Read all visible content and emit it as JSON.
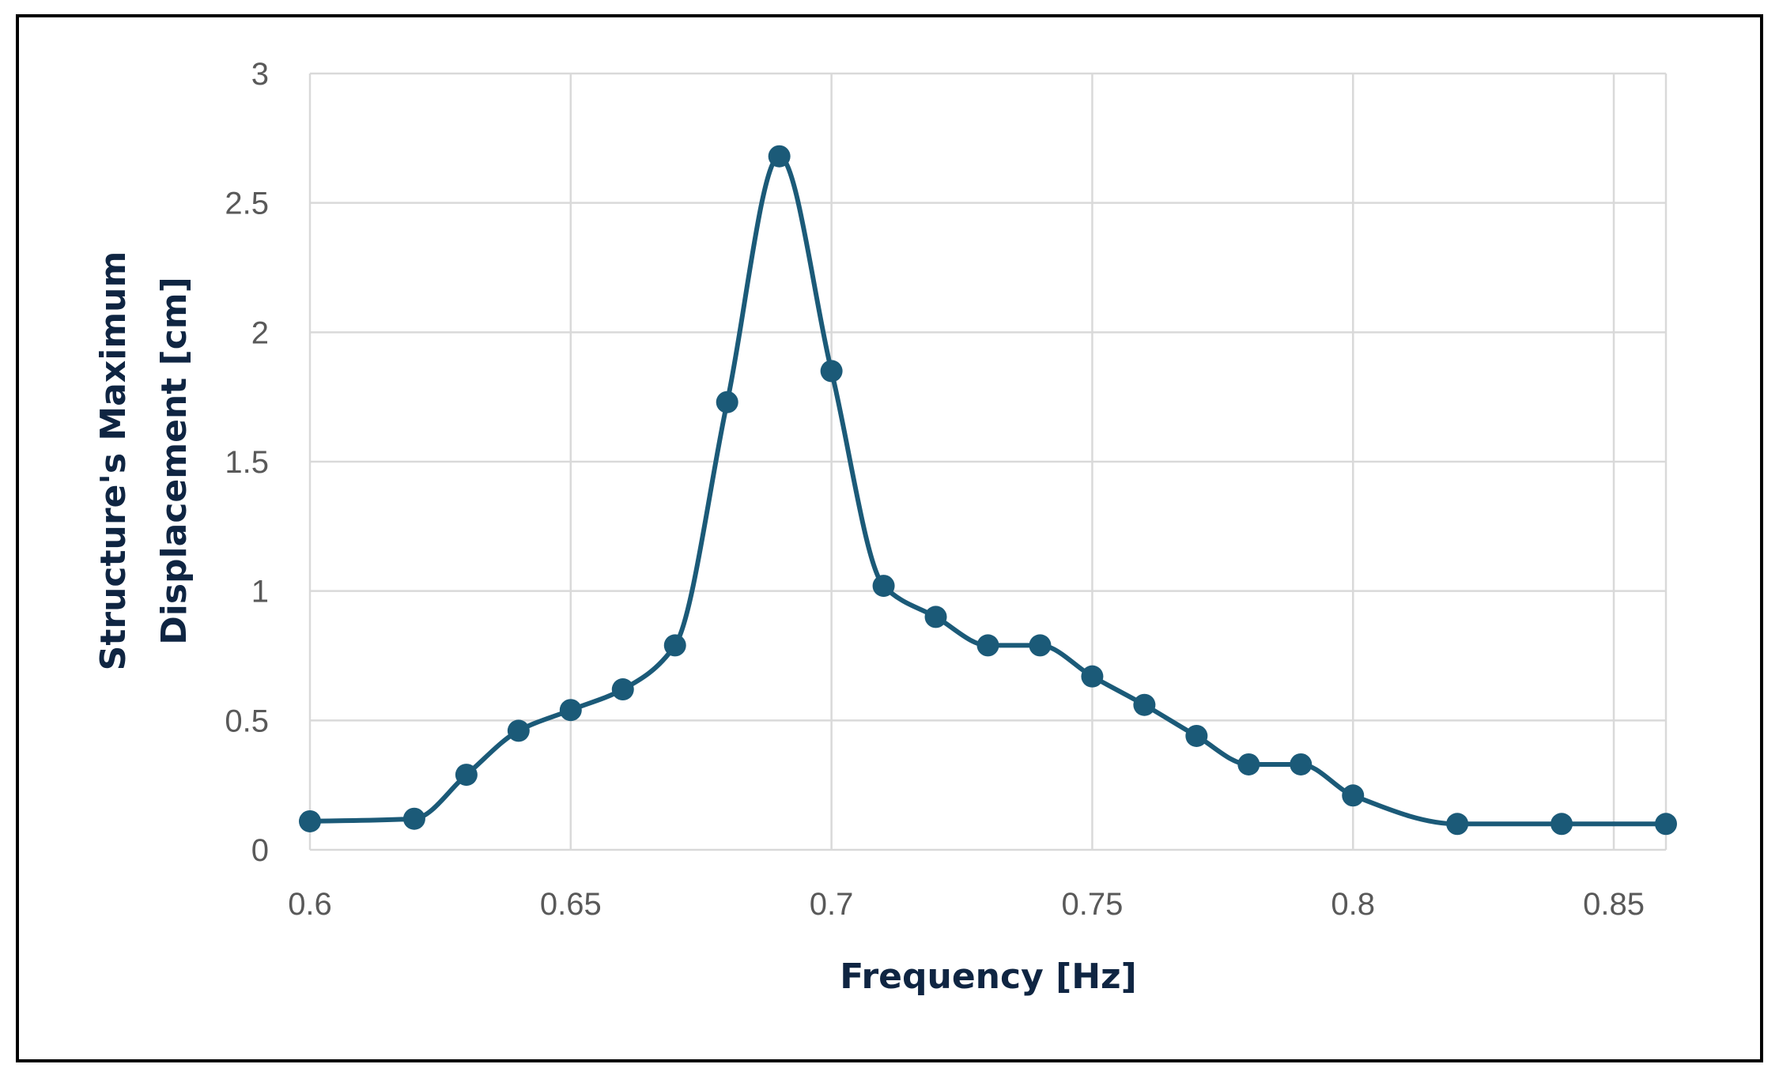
{
  "chart_data": {
    "type": "scatter",
    "title": "",
    "xlabel": "Frequency [Hz]",
    "ylabel_lines": [
      "Structure's Maximum",
      "Displacement [cm]"
    ],
    "xlim": [
      0.6,
      0.86
    ],
    "ylim": [
      0,
      3
    ],
    "x_ticks": [
      0.6,
      0.65,
      0.7,
      0.75,
      0.8,
      0.85
    ],
    "x_tick_labels": [
      "0.6",
      "0.65",
      "0.7",
      "0.75",
      "0.8",
      "0.85"
    ],
    "y_ticks": [
      0,
      0.5,
      1,
      1.5,
      2,
      2.5,
      3
    ],
    "y_tick_labels": [
      "0",
      "0.5",
      "1",
      "1.5",
      "2",
      "2.5",
      "3"
    ],
    "grid": true,
    "legend": "none",
    "line_style": "smooth",
    "series": [
      {
        "color": "#1b5a78",
        "x": [
          0.6,
          0.62,
          0.63,
          0.64,
          0.65,
          0.66,
          0.67,
          0.68,
          0.69,
          0.7,
          0.71,
          0.72,
          0.73,
          0.74,
          0.75,
          0.76,
          0.77,
          0.78,
          0.79,
          0.8,
          0.82,
          0.84,
          0.86
        ],
        "y": [
          0.11,
          0.12,
          0.29,
          0.46,
          0.54,
          0.62,
          0.79,
          1.73,
          2.68,
          1.85,
          1.02,
          0.9,
          0.79,
          0.79,
          0.67,
          0.56,
          0.44,
          0.33,
          0.33,
          0.21,
          0.1,
          0.1,
          0.1
        ]
      }
    ]
  }
}
